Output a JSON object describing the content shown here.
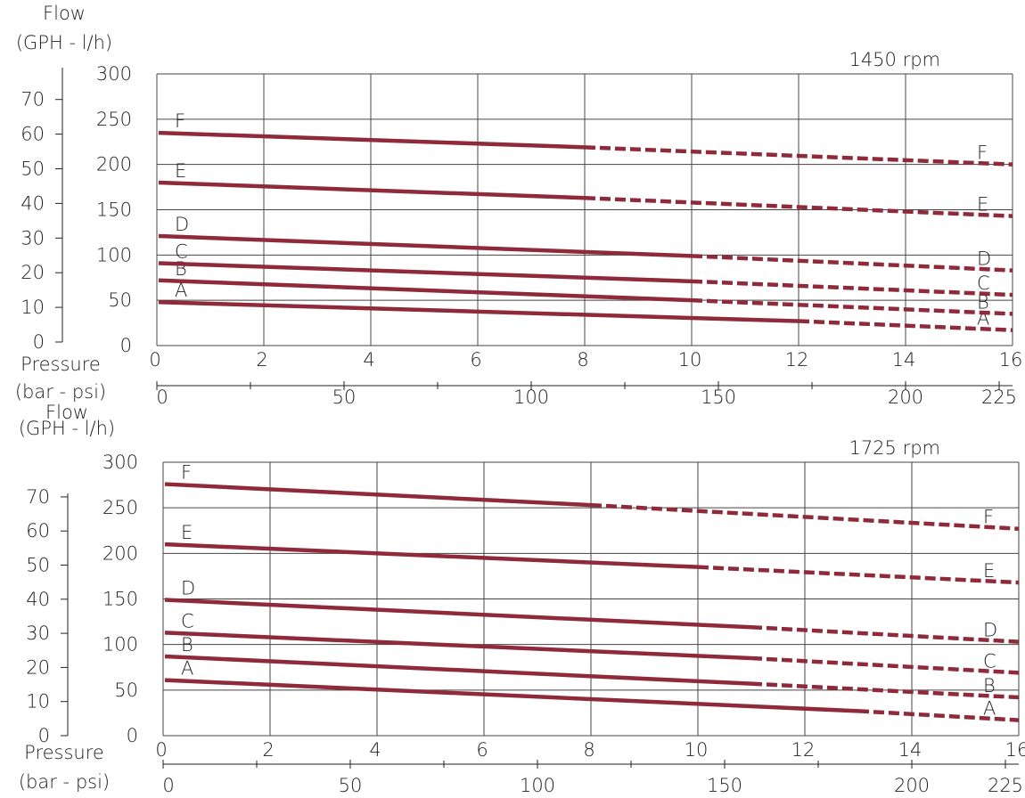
{
  "accent_color": "#8e2a39",
  "chart_data": [
    {
      "type": "line",
      "title": "1450 rpm",
      "flow_label": [
        "Flow",
        "(GPH - l/h)"
      ],
      "pressure_label": [
        "Pressure",
        "(bar - psi)"
      ],
      "x_bar": {
        "range": [
          0,
          16
        ],
        "ticks": [
          0,
          2,
          4,
          6,
          8,
          10,
          12,
          14,
          16
        ]
      },
      "x_psi": {
        "ticks": [
          0,
          50,
          100,
          150,
          200,
          225
        ]
      },
      "y_lh": {
        "range": [
          0,
          300
        ],
        "ticks": [
          0,
          50,
          100,
          150,
          200,
          250,
          300
        ]
      },
      "y_gph": {
        "ticks": [
          0,
          10,
          20,
          30,
          40,
          50,
          60,
          70
        ]
      },
      "grid": true,
      "series": [
        {
          "name": "A",
          "solid": [
            [
              0,
              48
            ],
            [
              12,
              27
            ]
          ],
          "dashed": [
            [
              12,
              27
            ],
            [
              16,
              17
            ]
          ]
        },
        {
          "name": "B",
          "solid": [
            [
              0,
              72
            ],
            [
              10,
              50
            ]
          ],
          "dashed": [
            [
              10,
              50
            ],
            [
              16,
              35
            ]
          ]
        },
        {
          "name": "C",
          "solid": [
            [
              0,
              91
            ],
            [
              10,
              71
            ]
          ],
          "dashed": [
            [
              10,
              71
            ],
            [
              16,
              56
            ]
          ]
        },
        {
          "name": "D",
          "solid": [
            [
              0,
              121
            ],
            [
              10,
              99
            ]
          ],
          "dashed": [
            [
              10,
              99
            ],
            [
              16,
              83
            ]
          ]
        },
        {
          "name": "E",
          "solid": [
            [
              0,
              180
            ],
            [
              8,
              163
            ]
          ],
          "dashed": [
            [
              8,
              163
            ],
            [
              16,
              143
            ]
          ]
        },
        {
          "name": "F",
          "solid": [
            [
              0,
              235
            ],
            [
              8,
              219
            ]
          ],
          "dashed": [
            [
              8,
              219
            ],
            [
              16,
              200
            ]
          ]
        }
      ]
    },
    {
      "type": "line",
      "title": "1725 rpm",
      "flow_label": [
        "Flow",
        "(GPH - l/h)"
      ],
      "pressure_label": [
        "Pressure",
        "(bar - psi)"
      ],
      "x_bar": {
        "range": [
          0,
          16
        ],
        "ticks": [
          0,
          2,
          4,
          6,
          8,
          10,
          12,
          14,
          16
        ]
      },
      "x_psi": {
        "ticks": [
          0,
          50,
          100,
          150,
          200,
          225
        ]
      },
      "y_lh": {
        "range": [
          0,
          300
        ],
        "ticks": [
          0,
          50,
          100,
          150,
          200,
          250,
          300
        ]
      },
      "y_gph": {
        "ticks": [
          0,
          10,
          20,
          30,
          40,
          50,
          60,
          70
        ]
      },
      "grid": true,
      "series": [
        {
          "name": "A",
          "solid": [
            [
              0,
              61
            ],
            [
              13,
              27
            ]
          ],
          "dashed": [
            [
              13,
              27
            ],
            [
              16,
              17
            ]
          ]
        },
        {
          "name": "B",
          "solid": [
            [
              0,
              87
            ],
            [
              11,
              57
            ]
          ],
          "dashed": [
            [
              11,
              57
            ],
            [
              16,
              42
            ]
          ]
        },
        {
          "name": "C",
          "solid": [
            [
              0,
              113
            ],
            [
              11,
              85
            ]
          ],
          "dashed": [
            [
              11,
              85
            ],
            [
              16,
              69
            ]
          ]
        },
        {
          "name": "D",
          "solid": [
            [
              0,
              149
            ],
            [
              11,
              119
            ]
          ],
          "dashed": [
            [
              11,
              119
            ],
            [
              16,
              103
            ]
          ]
        },
        {
          "name": "E",
          "solid": [
            [
              0,
              210
            ],
            [
              10,
              185
            ]
          ],
          "dashed": [
            [
              10,
              185
            ],
            [
              16,
              168
            ]
          ]
        },
        {
          "name": "F",
          "solid": [
            [
              0,
              276
            ],
            [
              8,
              253
            ]
          ],
          "dashed": [
            [
              8,
              253
            ],
            [
              16,
              227
            ]
          ]
        }
      ]
    }
  ]
}
